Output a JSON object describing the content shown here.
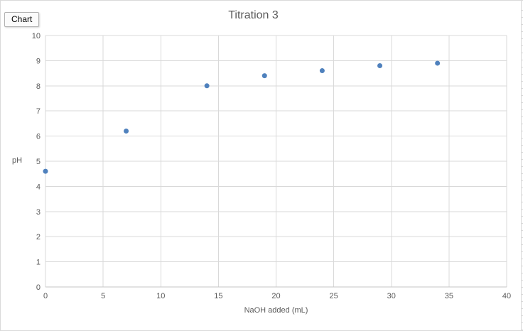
{
  "window": {
    "background": "#ffffff",
    "border_color": "#d9d9d9"
  },
  "chart_tag": {
    "label": "Chart"
  },
  "chart_data": {
    "type": "scatter",
    "title": "Titration 3",
    "xlabel": "NaOH added (mL)",
    "ylabel": "pH",
    "x": [
      0,
      7,
      14,
      19,
      24,
      29,
      34
    ],
    "y": [
      4.6,
      6.2,
      8.0,
      8.4,
      8.6,
      8.8,
      8.9
    ],
    "xlim": [
      0,
      40
    ],
    "ylim": [
      0,
      10
    ],
    "x_tick_step": 5,
    "y_tick_step": 1,
    "grid": true,
    "legend": "none",
    "marker_color": "#4f81bd",
    "grid_color": "#d9d9d9",
    "axis_line_color": "#c6c6c6",
    "axis_text_color": "#595959",
    "title_color": "#595959"
  }
}
